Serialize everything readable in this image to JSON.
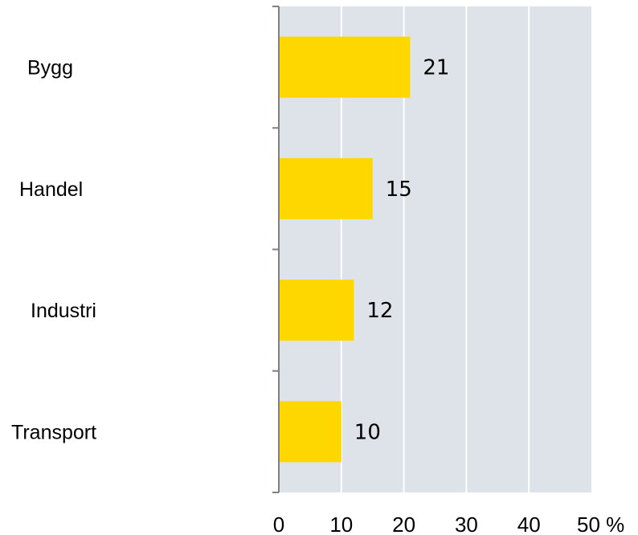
{
  "chart_data": {
    "type": "bar",
    "orientation": "horizontal",
    "categories": [
      "Bygg",
      "Handel",
      "Industri",
      "Transport"
    ],
    "values": [
      21,
      15,
      12,
      10
    ],
    "data_labels": [
      "21",
      "15",
      "12",
      "10"
    ],
    "x_ticks": [
      0,
      10,
      20,
      30,
      40,
      50
    ],
    "x_tick_labels": [
      "0",
      "10",
      "20",
      "30",
      "40",
      "50 %"
    ],
    "xlim": [
      0,
      50
    ],
    "grid": true,
    "legend": false,
    "colors": {
      "bar": "#FFD700",
      "plot_background": "#DDE3E8",
      "gridline": "#FFFFFF",
      "axis": "#808080",
      "text": "#000000"
    }
  }
}
